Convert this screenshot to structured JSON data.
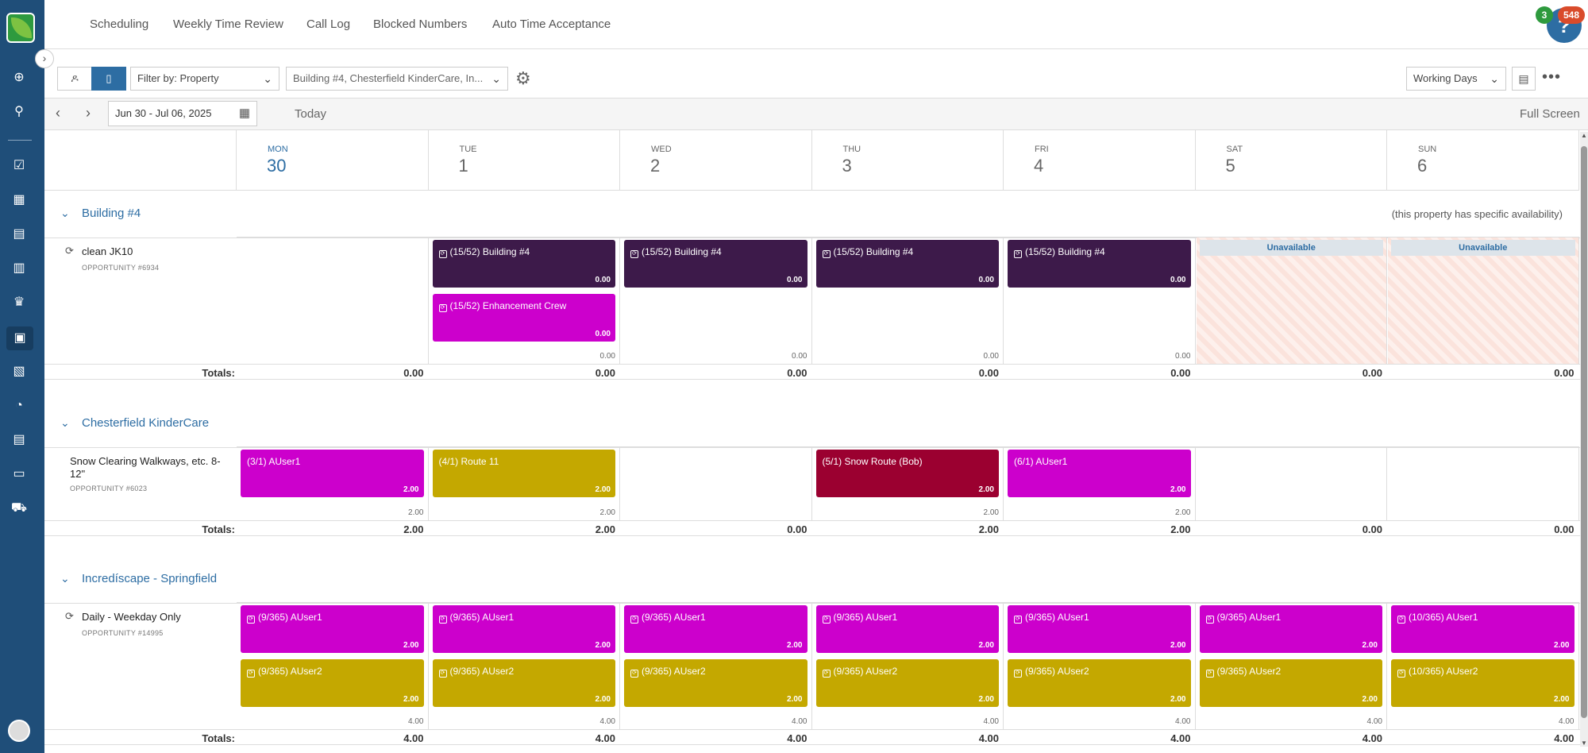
{
  "topnav": {
    "tabs": [
      "Scheduling",
      "Weekly Time Review",
      "Call Log",
      "Blocked Numbers",
      "Auto Time Acceptance"
    ]
  },
  "help": {
    "label": "?",
    "badge_green": "3",
    "badge_red": "548"
  },
  "toolbar": {
    "filter_by": "Filter by: Property",
    "property_filter": "Building #4, Chesterfield KinderCare, In...",
    "working_days": "Working Days"
  },
  "datebar": {
    "range": "Jun 30 - Jul 06, 2025",
    "today": "Today",
    "fullscreen": "Full Screen"
  },
  "days": [
    {
      "name": "MON",
      "date": "30"
    },
    {
      "name": "TUE",
      "date": "1"
    },
    {
      "name": "WED",
      "date": "2"
    },
    {
      "name": "THU",
      "date": "3"
    },
    {
      "name": "FRI",
      "date": "4"
    },
    {
      "name": "SAT",
      "date": "5"
    },
    {
      "name": "SUN",
      "date": "6"
    }
  ],
  "sections": [
    {
      "title": "Building #4",
      "note": "(this property has specific availability)",
      "row": {
        "label": "clean JK10",
        "opportunity": "OPPORTUNITY #6934",
        "recurring": true
      },
      "events": [
        {
          "day": 1,
          "slot": 0,
          "title": "(15/52) Building #4",
          "value": "0.00",
          "color": "#3d1a4a"
        },
        {
          "day": 1,
          "slot": 1,
          "title": "(15/52) Enhancement Crew",
          "value": "0.00",
          "color": "#cc00cc"
        },
        {
          "day": 2,
          "slot": 0,
          "title": "(15/52) Building #4",
          "value": "0.00",
          "color": "#3d1a4a"
        },
        {
          "day": 3,
          "slot": 0,
          "title": "(15/52) Building #4",
          "value": "0.00",
          "color": "#3d1a4a"
        },
        {
          "day": 4,
          "slot": 0,
          "title": "(15/52) Building #4",
          "value": "0.00",
          "color": "#3d1a4a"
        }
      ],
      "unavailable_days": [
        5,
        6
      ],
      "unavailable_label": "Unavailable",
      "subtotals": [
        "",
        "0.00",
        "0.00",
        "0.00",
        "0.00",
        "",
        ""
      ],
      "totals_label": "Totals:",
      "totals": [
        "0.00",
        "0.00",
        "0.00",
        "0.00",
        "0.00",
        "0.00",
        "0.00"
      ]
    },
    {
      "title": "Chesterfield KinderCare",
      "note": "",
      "row": {
        "label": "Snow Clearing Walkways, etc. 8-12\"",
        "opportunity": "OPPORTUNITY #6023",
        "recurring": false
      },
      "events": [
        {
          "day": 0,
          "slot": 0,
          "title": "(3/1) AUser1",
          "value": "2.00",
          "color": "#cc00cc"
        },
        {
          "day": 1,
          "slot": 0,
          "title": "(4/1) Route 11",
          "value": "2.00",
          "color": "#c4a800"
        },
        {
          "day": 3,
          "slot": 0,
          "title": "(5/1) Snow Route (Bob)",
          "value": "2.00",
          "color": "#9b0030"
        },
        {
          "day": 4,
          "slot": 0,
          "title": "(6/1) AUser1",
          "value": "2.00",
          "color": "#cc00cc"
        }
      ],
      "unavailable_days": [],
      "unavailable_label": "",
      "subtotals": [
        "2.00",
        "2.00",
        "",
        "2.00",
        "2.00",
        "",
        ""
      ],
      "totals_label": "Totals:",
      "totals": [
        "2.00",
        "2.00",
        "0.00",
        "2.00",
        "2.00",
        "0.00",
        "0.00"
      ]
    },
    {
      "title": "Incredíscape - Springfield",
      "note": "",
      "row": {
        "label": "Daily - Weekday Only",
        "opportunity": "OPPORTUNITY #14995",
        "recurring": true
      },
      "events": [
        {
          "day": 0,
          "slot": 0,
          "title": "(9/365) AUser1",
          "value": "2.00",
          "color": "#cc00cc"
        },
        {
          "day": 0,
          "slot": 1,
          "title": "(9/365) AUser2",
          "value": "2.00",
          "color": "#c4a800"
        },
        {
          "day": 1,
          "slot": 0,
          "title": "(9/365) AUser1",
          "value": "2.00",
          "color": "#cc00cc"
        },
        {
          "day": 1,
          "slot": 1,
          "title": "(9/365) AUser2",
          "value": "2.00",
          "color": "#c4a800"
        },
        {
          "day": 2,
          "slot": 0,
          "title": "(9/365) AUser1",
          "value": "2.00",
          "color": "#cc00cc"
        },
        {
          "day": 2,
          "slot": 1,
          "title": "(9/365) AUser2",
          "value": "2.00",
          "color": "#c4a800"
        },
        {
          "day": 3,
          "slot": 0,
          "title": "(9/365) AUser1",
          "value": "2.00",
          "color": "#cc00cc"
        },
        {
          "day": 3,
          "slot": 1,
          "title": "(9/365) AUser2",
          "value": "2.00",
          "color": "#c4a800"
        },
        {
          "day": 4,
          "slot": 0,
          "title": "(9/365) AUser1",
          "value": "2.00",
          "color": "#cc00cc"
        },
        {
          "day": 4,
          "slot": 1,
          "title": "(9/365) AUser2",
          "value": "2.00",
          "color": "#c4a800"
        },
        {
          "day": 5,
          "slot": 0,
          "title": "(9/365) AUser1",
          "value": "2.00",
          "color": "#cc00cc"
        },
        {
          "day": 5,
          "slot": 1,
          "title": "(9/365) AUser2",
          "value": "2.00",
          "color": "#c4a800"
        },
        {
          "day": 6,
          "slot": 0,
          "title": "(10/365) AUser1",
          "value": "2.00",
          "color": "#cc00cc"
        },
        {
          "day": 6,
          "slot": 1,
          "title": "(10/365) AUser2",
          "value": "2.00",
          "color": "#c4a800"
        }
      ],
      "unavailable_days": [],
      "unavailable_label": "",
      "subtotals": [
        "4.00",
        "4.00",
        "4.00",
        "4.00",
        "4.00",
        "4.00",
        "4.00"
      ],
      "totals_label": "Totals:",
      "totals": [
        "4.00",
        "4.00",
        "4.00",
        "4.00",
        "4.00",
        "4.00",
        "4.00"
      ]
    }
  ],
  "sidebar_icons": [
    "plus-circle-icon",
    "search-icon",
    "checklist-icon",
    "calendar-icon",
    "id-card-icon",
    "buildings-icon",
    "trophy-icon",
    "schedule-icon",
    "clipboard-icon",
    "pie-chart-icon",
    "report-icon",
    "archive-icon",
    "tractor-icon"
  ]
}
